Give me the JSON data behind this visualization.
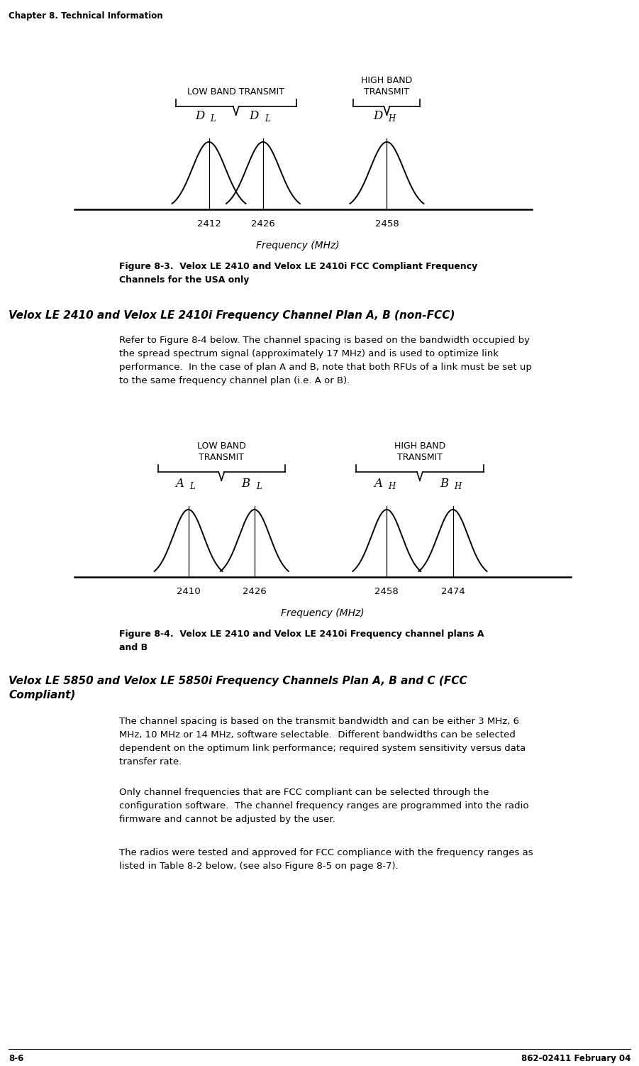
{
  "header": "Chapter 8. Technical Information",
  "footer_left": "8-6",
  "footer_right": "862-02411 February 04",
  "fig1": {
    "title": "Figure 8-3.  Velox LE 2410 and Velox LE 2410i FCC Compliant Frequency\nChannels for the USA only",
    "low_band_label": "LOW BAND TRANSMIT",
    "high_band_label": "HIGH BAND\nTRANSMIT",
    "freq_label": "Frequency (MHz)",
    "channels": [
      2412,
      2426,
      2458
    ],
    "channel_labels": [
      "D",
      "D",
      "D"
    ],
    "channel_subs": [
      "L",
      "L",
      "H"
    ],
    "fmin": 2380,
    "fmax": 2490
  },
  "section_heading": "Velox LE 2410 and Velox LE 2410i Frequency Channel Plan A, B (non-FCC)",
  "para1": "Refer to Figure 8-4 below. The channel spacing is based on the bandwidth occupied by\nthe spread spectrum signal (approximately 17 MHz) and is used to optimize link\nperformance.  In the case of plan A and B, note that both RFUs of a link must be set up\nto the same frequency channel plan (i.e. A or B).",
  "fig2": {
    "title": "Figure 8-4.  Velox LE 2410 and Velox LE 2410i Frequency channel plans A\nand B",
    "low_band_label": "LOW BAND\nTRANSMIT",
    "high_band_label": "HIGH BAND\nTRANSMIT",
    "freq_label": "Frequency (MHz)",
    "channels": [
      2410,
      2426,
      2458,
      2474
    ],
    "channel_labels": [
      "A",
      "B",
      "A",
      "B"
    ],
    "channel_subs": [
      "L",
      "L",
      "H",
      "H"
    ],
    "fmin": 2385,
    "fmax": 2500
  },
  "section_heading2": "Velox LE 5850 and Velox LE 5850i Frequency Channels Plan A, B and C (FCC\nCompliant)",
  "para2": "The channel spacing is based on the transmit bandwidth and can be either 3 MHz, 6\nMHz, 10 MHz or 14 MHz, software selectable.  Different bandwidths can be selected\ndependent on the optimum link performance; required system sensitivity versus data\ntransfer rate.",
  "para3": "Only channel frequencies that are FCC compliant can be selected through the\nconfiguration software.  The channel frequency ranges are programmed into the radio\nfirmware and cannot be adjusted by the user.",
  "para4": "The radios were tested and approved for FCC compliance with the frequency ranges as\nlisted in Table 8-2 below, (see also Figure 8-5 on page 8-7). "
}
